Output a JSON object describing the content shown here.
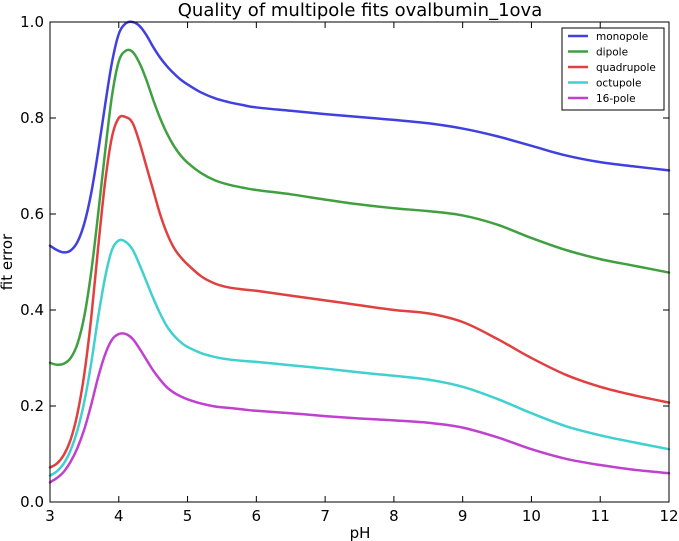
{
  "chart_data": {
    "type": "line",
    "title": "Quality of multipole fits ovalbumin_1ova",
    "xlabel": "pH",
    "ylabel": "fit error",
    "xlim": [
      3,
      12
    ],
    "ylim": [
      0.0,
      1.0
    ],
    "xticks": [
      "3",
      "4",
      "5",
      "6",
      "7",
      "8",
      "9",
      "10",
      "11",
      "12"
    ],
    "yticks": [
      "0.0",
      "0.2",
      "0.4",
      "0.6",
      "0.8",
      "1.0"
    ],
    "legend_position": "top-right",
    "grid": false,
    "x": [
      3.0,
      3.1,
      3.2,
      3.3,
      3.4,
      3.5,
      3.6,
      3.7,
      3.8,
      3.9,
      4.0,
      4.1,
      4.2,
      4.3,
      4.4,
      4.5,
      4.6,
      4.7,
      4.8,
      4.9,
      5.0,
      5.2,
      5.4,
      5.6,
      5.8,
      6.0,
      6.5,
      7.0,
      7.5,
      8.0,
      8.5,
      9.0,
      9.5,
      10.0,
      10.5,
      11.0,
      11.5,
      12.0
    ],
    "series": [
      {
        "name": "monopole",
        "color": "#4040e0",
        "values": [
          0.534,
          0.525,
          0.52,
          0.524,
          0.542,
          0.581,
          0.644,
          0.73,
          0.826,
          0.915,
          0.975,
          0.997,
          1.0,
          0.992,
          0.973,
          0.948,
          0.926,
          0.908,
          0.893,
          0.88,
          0.87,
          0.853,
          0.841,
          0.833,
          0.827,
          0.822,
          0.815,
          0.808,
          0.802,
          0.796,
          0.789,
          0.778,
          0.762,
          0.742,
          0.722,
          0.708,
          0.699,
          0.691
        ]
      },
      {
        "name": "dipole",
        "color": "#40a040",
        "values": [
          0.29,
          0.286,
          0.288,
          0.3,
          0.33,
          0.388,
          0.48,
          0.6,
          0.728,
          0.845,
          0.918,
          0.94,
          0.938,
          0.915,
          0.88,
          0.838,
          0.8,
          0.768,
          0.742,
          0.722,
          0.707,
          0.685,
          0.67,
          0.661,
          0.655,
          0.65,
          0.641,
          0.63,
          0.62,
          0.612,
          0.606,
          0.597,
          0.578,
          0.55,
          0.525,
          0.506,
          0.492,
          0.478
        ]
      },
      {
        "name": "quadrupole",
        "color": "#e04040",
        "values": [
          0.072,
          0.08,
          0.098,
          0.13,
          0.185,
          0.268,
          0.385,
          0.53,
          0.665,
          0.76,
          0.8,
          0.802,
          0.79,
          0.75,
          0.7,
          0.65,
          0.6,
          0.56,
          0.53,
          0.51,
          0.495,
          0.47,
          0.455,
          0.447,
          0.443,
          0.44,
          0.43,
          0.42,
          0.41,
          0.4,
          0.393,
          0.375,
          0.34,
          0.3,
          0.265,
          0.24,
          0.222,
          0.207
        ]
      },
      {
        "name": "octupole",
        "color": "#40d0d0",
        "values": [
          0.055,
          0.064,
          0.08,
          0.108,
          0.15,
          0.21,
          0.29,
          0.385,
          0.467,
          0.525,
          0.545,
          0.542,
          0.526,
          0.495,
          0.46,
          0.425,
          0.393,
          0.366,
          0.347,
          0.333,
          0.323,
          0.31,
          0.302,
          0.297,
          0.294,
          0.292,
          0.285,
          0.278,
          0.27,
          0.263,
          0.255,
          0.24,
          0.215,
          0.185,
          0.158,
          0.139,
          0.124,
          0.11
        ]
      },
      {
        "name": "16-pole",
        "color": "#c040d0",
        "values": [
          0.041,
          0.05,
          0.063,
          0.084,
          0.113,
          0.152,
          0.203,
          0.26,
          0.307,
          0.338,
          0.35,
          0.35,
          0.34,
          0.32,
          0.297,
          0.274,
          0.255,
          0.239,
          0.228,
          0.22,
          0.214,
          0.205,
          0.199,
          0.196,
          0.193,
          0.19,
          0.185,
          0.179,
          0.174,
          0.17,
          0.165,
          0.155,
          0.135,
          0.11,
          0.09,
          0.077,
          0.067,
          0.06
        ]
      }
    ]
  }
}
